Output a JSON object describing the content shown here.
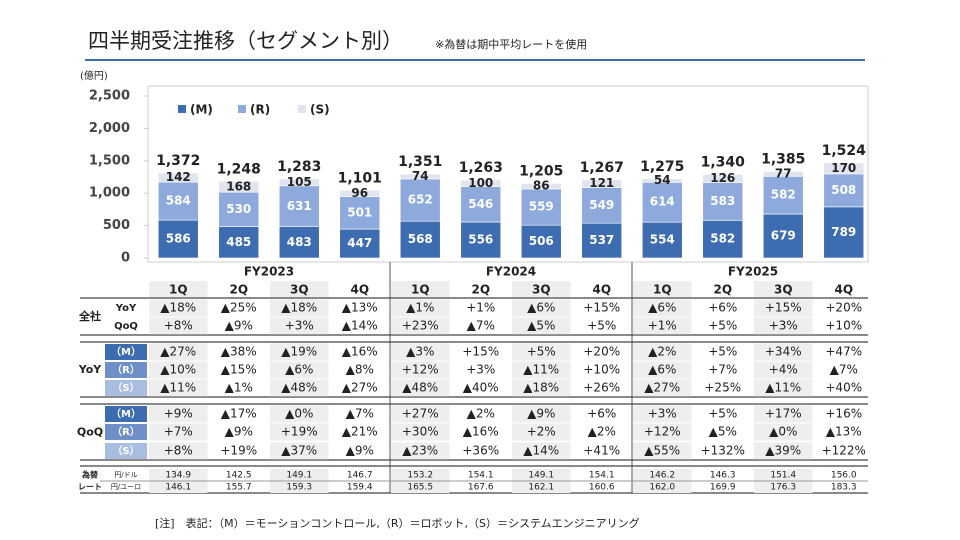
{
  "header": {
    "title": "四半期受注推移（セグメント別）",
    "subtitle": "※為替は期中平均レートを使用"
  },
  "chart_data": {
    "type": "bar",
    "stacked": true,
    "y_unit": "(億円)",
    "categories": [
      "1Q",
      "2Q",
      "3Q",
      "4Q",
      "1Q",
      "2Q",
      "3Q",
      "4Q",
      "1Q",
      "2Q",
      "3Q",
      "4Q"
    ],
    "fiscal_years": [
      "FY2023",
      "FY2024",
      "FY2025"
    ],
    "series": [
      {
        "name": "(M)",
        "color": "#3d6cb0",
        "values": [
          586,
          485,
          483,
          447,
          568,
          556,
          506,
          537,
          554,
          582,
          679,
          789
        ]
      },
      {
        "name": "(R)",
        "color": "#8eaadc",
        "values": [
          584,
          530,
          631,
          501,
          652,
          546,
          559,
          549,
          614,
          583,
          582,
          508
        ]
      },
      {
        "name": "(S)",
        "color": "#dfe4ee",
        "values": [
          142,
          168,
          105,
          96,
          74,
          100,
          86,
          121,
          54,
          126,
          77,
          170
        ]
      }
    ],
    "totals": {
      "values": [
        1372,
        1248,
        1283,
        1101,
        1351,
        1263,
        1205,
        1267,
        1275,
        1340,
        1385,
        1524
      ],
      "value_labels": [
        "1,372",
        "1,248",
        "1,283",
        "1,101",
        "1,351",
        "1,263",
        "1,205",
        "1,267",
        "1,275",
        "1,340",
        "1,385",
        "1,524"
      ]
    },
    "ylim": [
      0,
      2500
    ],
    "yticks": [
      0,
      500,
      {
        "value": 1000,
        "label": "1,000"
      },
      {
        "value": 1500,
        "label": "1,500"
      },
      {
        "value": 2000,
        "label": "2,000"
      },
      {
        "value": 2500,
        "label": "2,500"
      }
    ]
  },
  "table": {
    "groups": [
      {
        "label": "全社",
        "rows": [
          {
            "label": "YoY",
            "cells": [
              "▲18%",
              "▲25%",
              "▲18%",
              "▲13%",
              "▲1%",
              "+1%",
              "▲6%",
              "+15%",
              "▲6%",
              "+6%",
              "+15%",
              "+20%"
            ]
          },
          {
            "label": "QoQ",
            "cells": [
              "+8%",
              "▲9%",
              "+3%",
              "▲14%",
              "+23%",
              "▲7%",
              "▲5%",
              "+5%",
              "+1%",
              "+5%",
              "+3%",
              "+10%"
            ]
          }
        ]
      },
      {
        "label": "YoY",
        "rows": [
          {
            "label": "（M）",
            "cells": [
              "▲27%",
              "▲38%",
              "▲19%",
              "▲16%",
              "▲3%",
              "+15%",
              "+5%",
              "+20%",
              "▲2%",
              "+5%",
              "+34%",
              "+47%"
            ]
          },
          {
            "label": "（R）",
            "cells": [
              "▲10%",
              "▲15%",
              "▲6%",
              "▲8%",
              "+12%",
              "+3%",
              "▲11%",
              "+10%",
              "▲6%",
              "+7%",
              "+4%",
              "▲7%"
            ]
          },
          {
            "label": "（S）",
            "cells": [
              "▲11%",
              "▲1%",
              "▲48%",
              "▲27%",
              "▲48%",
              "▲40%",
              "▲18%",
              "+26%",
              "▲27%",
              "+25%",
              "▲11%",
              "+40%"
            ]
          }
        ]
      },
      {
        "label": "QoQ",
        "rows": [
          {
            "label": "（M）",
            "cells": [
              "+9%",
              "▲17%",
              "▲0%",
              "▲7%",
              "+27%",
              "▲2%",
              "▲9%",
              "+6%",
              "+3%",
              "+5%",
              "+17%",
              "+16%"
            ]
          },
          {
            "label": "（R）",
            "cells": [
              "+7%",
              "▲9%",
              "+19%",
              "▲21%",
              "+30%",
              "▲16%",
              "+2%",
              "▲2%",
              "+12%",
              "▲5%",
              "▲0%",
              "▲13%"
            ]
          },
          {
            "label": "（S）",
            "cells": [
              "+8%",
              "+19%",
              "▲37%",
              "▲9%",
              "▲23%",
              "+36%",
              "▲14%",
              "+41%",
              "▲55%",
              "+132%",
              "▲39%",
              "+122%"
            ]
          }
        ]
      },
      {
        "label": [
          "為替",
          "レート"
        ],
        "rows": [
          {
            "label": "円/ドル",
            "cells": [
              "134.9",
              "142.5",
              "149.1",
              "146.7",
              "153.2",
              "154.1",
              "149.1",
              "154.1",
              "146.2",
              "146.3",
              "151.4",
              "156.0"
            ]
          },
          {
            "label": "円/ユーロ",
            "cells": [
              "146.1",
              "155.7",
              "159.3",
              "159.4",
              "165.5",
              "167.6",
              "162.1",
              "160.6",
              "162.0",
              "169.9",
              "176.3",
              "183.3"
            ]
          }
        ]
      }
    ]
  },
  "footnote": "[注]　表記：（M）＝モーションコントロール,（R）＝ロボット,（S）＝システムエンジニアリング"
}
